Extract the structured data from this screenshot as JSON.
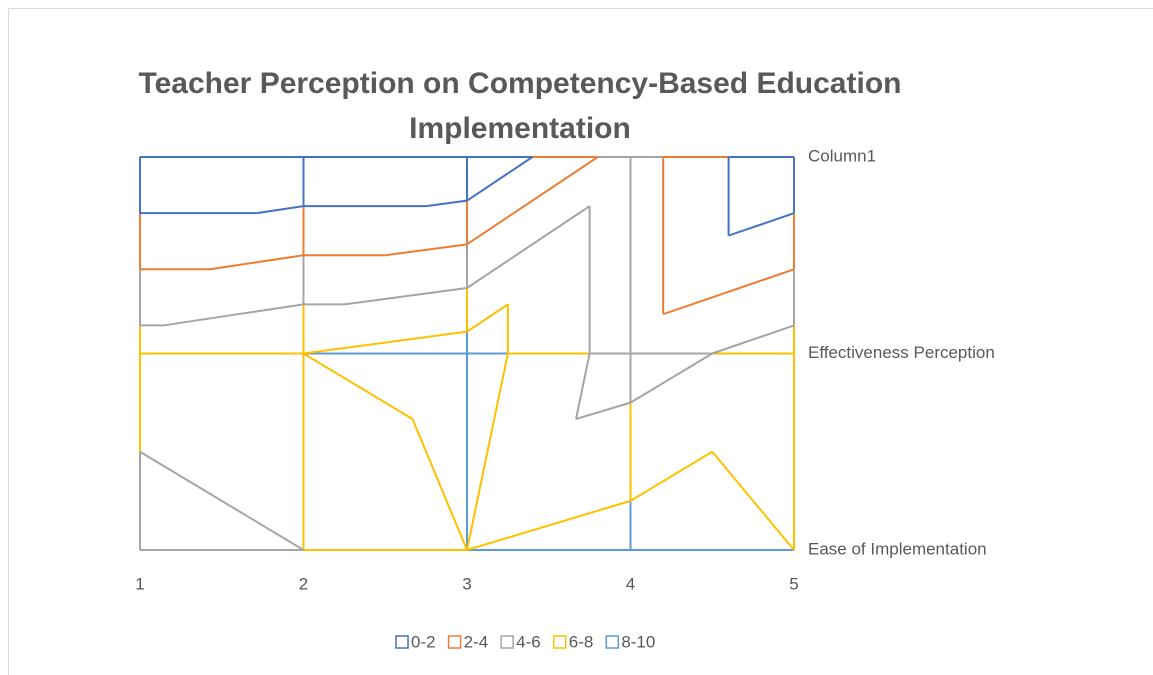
{
  "chart_data": {
    "type": "surface",
    "title": "Teacher Perception on Competency-Based Education Implementation",
    "categories": [
      1,
      2,
      3,
      4,
      5
    ],
    "series": [
      {
        "name": "Ease of Implementation",
        "values": [
          5,
          6,
          8,
          9,
          8
        ]
      },
      {
        "name": "Effectiveness Perception",
        "values": [
          7,
          8,
          9,
          5,
          7
        ]
      },
      {
        "name": "Column1",
        "values": [
          0,
          0,
          0,
          5,
          0
        ]
      }
    ],
    "bands": [
      {
        "name": "0-2",
        "range": [
          0,
          2
        ],
        "color": "#4472c4"
      },
      {
        "name": "2-4",
        "range": [
          2,
          4
        ],
        "color": "#ed7d31"
      },
      {
        "name": "4-6",
        "range": [
          4,
          6
        ],
        "color": "#a5a5a5"
      },
      {
        "name": "6-8",
        "range": [
          6,
          8
        ],
        "color": "#ffc000"
      },
      {
        "name": "8-10",
        "range": [
          8,
          10
        ],
        "color": "#5b9bd5"
      }
    ]
  }
}
